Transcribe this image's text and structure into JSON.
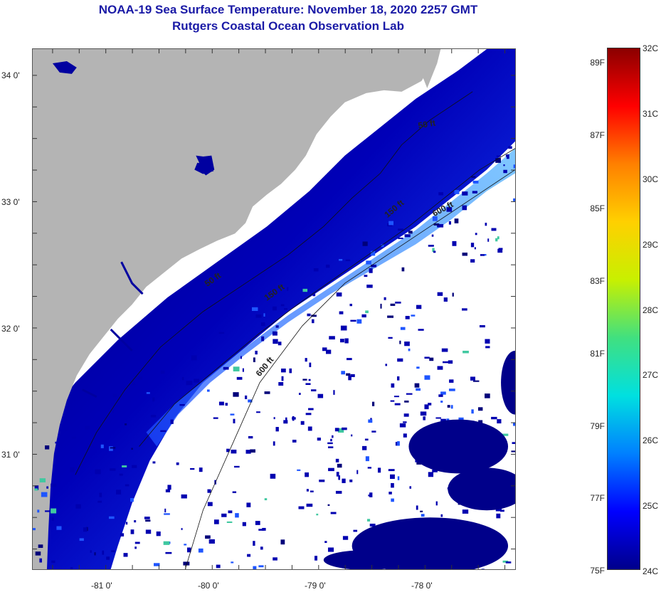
{
  "title": {
    "line1": "NOAA-19 Sea Surface Temperature:  November 18, 2020 2257 GMT",
    "line2": "Rutgers Coastal Ocean Observation Lab"
  },
  "map": {
    "land_color": "#b4b4b4",
    "cloud_color": "#ffffff",
    "shelf_water_colors": [
      "#00007a",
      "#0000b0",
      "#0a1ad8",
      "#1e55ff",
      "#3a95ff"
    ],
    "latitude_labels": [
      "34 0'",
      "33 0'",
      "32 0'",
      "31 0'"
    ],
    "longitude_labels": [
      "-81 0'",
      "-80 0'",
      "-79 0'",
      "-78 0'"
    ],
    "contour_labels": [
      "50 ft",
      "150 ft",
      "600 ft",
      "50 ft",
      "150 ft",
      "600 ft"
    ]
  },
  "colorbar": {
    "fahrenheit_labels": [
      "89F",
      "87F",
      "85F",
      "83F",
      "81F",
      "79F",
      "77F",
      "75F"
    ],
    "celsius_labels": [
      "32C",
      "31C",
      "30C",
      "29C",
      "28C",
      "27C",
      "26C",
      "25C",
      "24C"
    ],
    "colors": [
      "#8b0000",
      "#ff0000",
      "#ff8000",
      "#ffd000",
      "#c8f000",
      "#40e080",
      "#00e0e0",
      "#0080ff",
      "#0000ff",
      "#00008b"
    ]
  }
}
